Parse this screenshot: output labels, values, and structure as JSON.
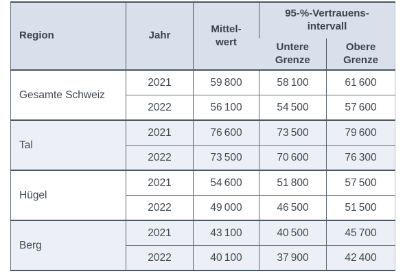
{
  "colors": {
    "header_bg": "#d9e0ec",
    "alt_group_bg": "#ecf0f6",
    "border_strong": "#4c5660",
    "border_light": "#69737e",
    "text": "#3d4550"
  },
  "table": {
    "headers": {
      "region": "Region",
      "year": "Jahr",
      "mean": "Mittel-\nwert",
      "ci": "95-%-Vertrauens-\nintervall",
      "ci_lower": "Untere\nGrenze",
      "ci_upper": "Obere\nGrenze"
    },
    "groups": [
      {
        "region": "Gesamte Schweiz",
        "rows": [
          {
            "year": "2021",
            "mean": "59 800",
            "lower": "58 100",
            "upper": "61 600"
          },
          {
            "year": "2022",
            "mean": "56 100",
            "lower": "54 500",
            "upper": "57 600"
          }
        ]
      },
      {
        "region": "Tal",
        "rows": [
          {
            "year": "2021",
            "mean": "76 600",
            "lower": "73 500",
            "upper": "79 600"
          },
          {
            "year": "2022",
            "mean": "73 500",
            "lower": "70 600",
            "upper": "76 300"
          }
        ]
      },
      {
        "region": "Hügel",
        "rows": [
          {
            "year": "2021",
            "mean": "54 600",
            "lower": "51 800",
            "upper": "57 500"
          },
          {
            "year": "2022",
            "mean": "49 000",
            "lower": "46 500",
            "upper": "51 500"
          }
        ]
      },
      {
        "region": "Berg",
        "rows": [
          {
            "year": "2021",
            "mean": "43 100",
            "lower": "40 500",
            "upper": "45 700"
          },
          {
            "year": "2022",
            "mean": "40 100",
            "lower": "37 900",
            "upper": "42 400"
          }
        ]
      }
    ]
  },
  "chart_data": {
    "type": "table",
    "title": "",
    "columns": [
      "Region",
      "Jahr",
      "Mittelwert",
      "Untere Grenze",
      "Obere Grenze"
    ],
    "column_groups": [
      {
        "label": "95-%-Vertrauensintervall",
        "columns": [
          "Untere Grenze",
          "Obere Grenze"
        ]
      }
    ],
    "rows": [
      [
        "Gesamte Schweiz",
        2021,
        59800,
        58100,
        61600
      ],
      [
        "Gesamte Schweiz",
        2022,
        56100,
        54500,
        57600
      ],
      [
        "Tal",
        2021,
        76600,
        73500,
        79600
      ],
      [
        "Tal",
        2022,
        73500,
        70600,
        76300
      ],
      [
        "Hügel",
        2021,
        54600,
        51800,
        57500
      ],
      [
        "Hügel",
        2022,
        49000,
        46500,
        51500
      ],
      [
        "Berg",
        2021,
        43100,
        40500,
        45700
      ],
      [
        "Berg",
        2022,
        40100,
        37900,
        42400
      ]
    ]
  }
}
